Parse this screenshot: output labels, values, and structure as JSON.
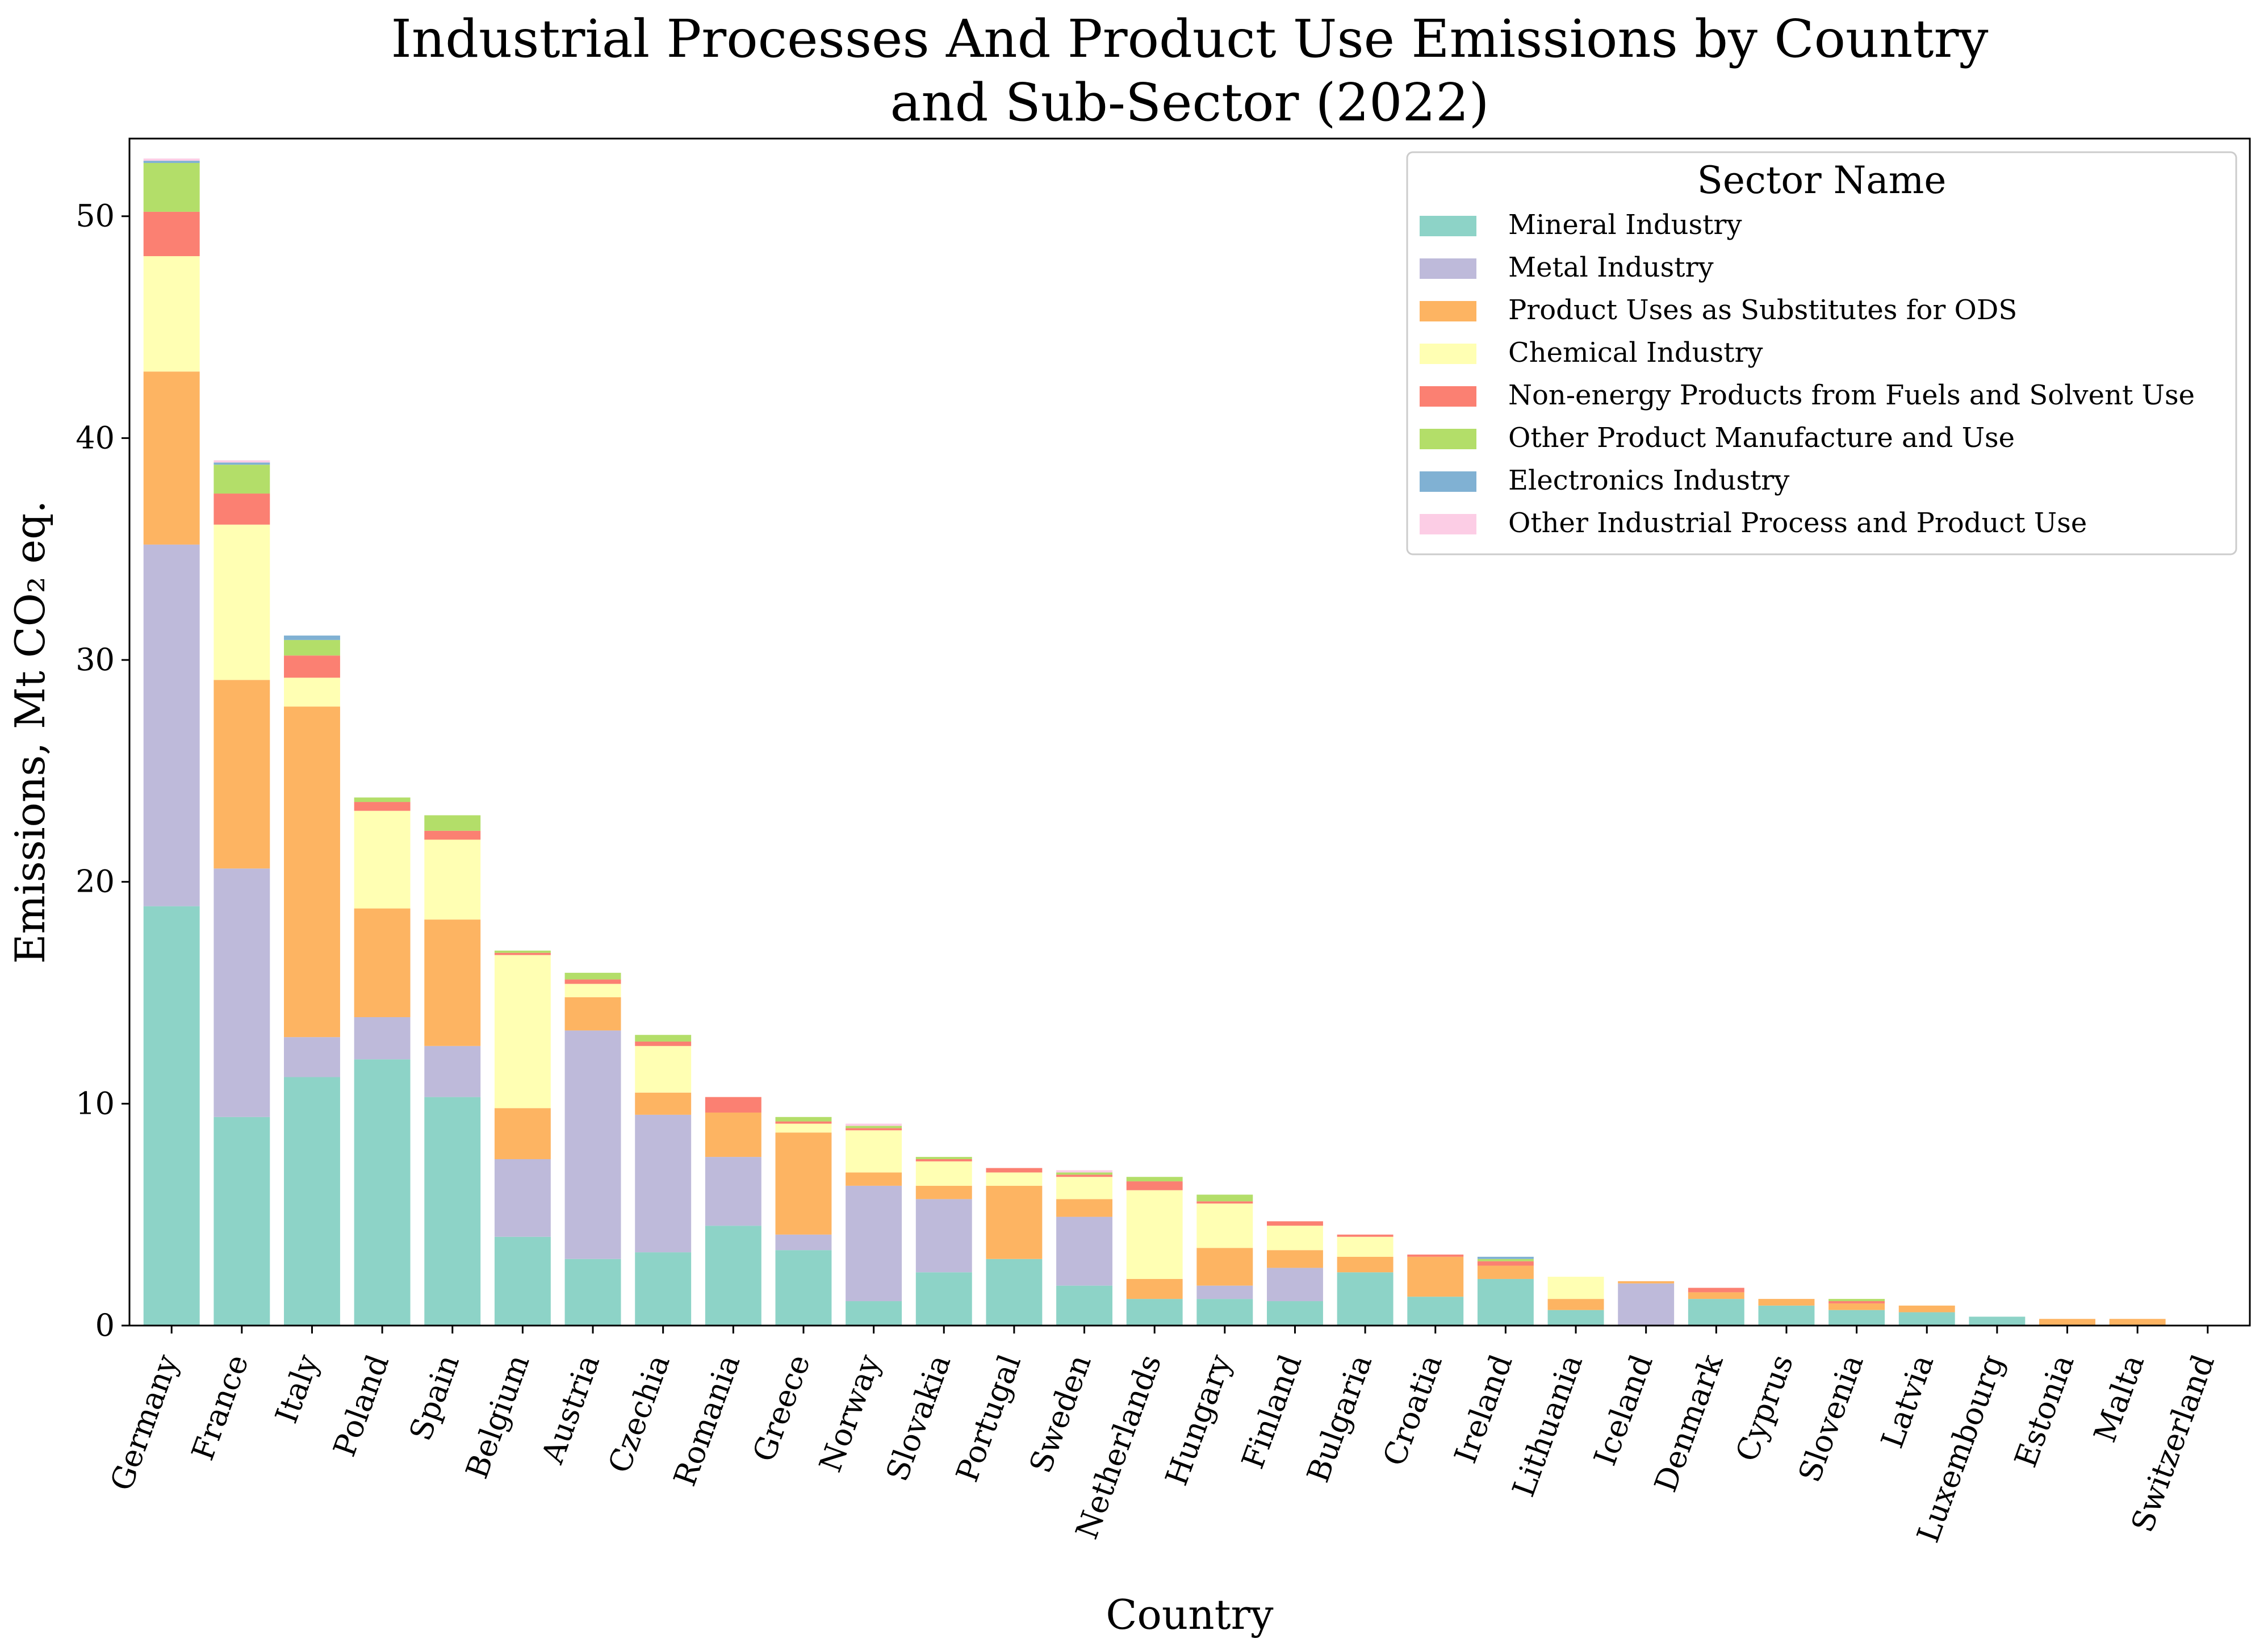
{
  "chart_data": {
    "type": "bar",
    "stacked": true,
    "title_lines": [
      "Industrial Processes And Product Use Emissions by Country",
      "and Sub-Sector (2022)"
    ],
    "xlabel": "Country",
    "ylabel": "Emissions, Mt CO₂ eq.",
    "ylim": [
      0,
      53.5
    ],
    "yticks": [
      0,
      10,
      20,
      30,
      40,
      50
    ],
    "grid": false,
    "legend": {
      "title": "Sector Name",
      "placement": "top-right"
    },
    "categories": [
      "Germany",
      "France",
      "Italy",
      "Poland",
      "Spain",
      "Belgium",
      "Austria",
      "Czechia",
      "Romania",
      "Greece",
      "Norway",
      "Slovakia",
      "Portugal",
      "Sweden",
      "Netherlands",
      "Hungary",
      "Finland",
      "Bulgaria",
      "Croatia",
      "Ireland",
      "Lithuania",
      "Iceland",
      "Denmark",
      "Cyprus",
      "Slovenia",
      "Latvia",
      "Luxembourg",
      "Estonia",
      "Malta",
      "Switzerland"
    ],
    "series": [
      {
        "name": "Mineral Industry",
        "color": "#8dd3c7",
        "values": [
          18.9,
          9.4,
          11.2,
          12.0,
          10.3,
          4.0,
          3.0,
          3.3,
          4.5,
          3.4,
          1.1,
          2.4,
          3.0,
          1.8,
          1.2,
          1.2,
          1.1,
          2.4,
          1.3,
          2.1,
          0.7,
          0.0,
          1.2,
          0.9,
          0.7,
          0.6,
          0.4,
          0.0,
          0.0,
          0.0
        ]
      },
      {
        "name": "Metal Industry",
        "color": "#bebada",
        "values": [
          16.3,
          11.2,
          1.8,
          1.9,
          2.3,
          3.5,
          10.3,
          6.2,
          3.1,
          0.7,
          5.2,
          3.3,
          0.0,
          3.1,
          0.0,
          0.6,
          1.5,
          0.0,
          0.0,
          0.0,
          0.0,
          1.9,
          0.0,
          0.0,
          0.0,
          0.0,
          0.0,
          0.0,
          0.0,
          0.0
        ]
      },
      {
        "name": "Product Uses as Substitutes for ODS",
        "color": "#fdb462",
        "values": [
          7.8,
          8.5,
          14.9,
          4.9,
          5.7,
          2.3,
          1.5,
          1.0,
          2.0,
          4.6,
          0.6,
          0.6,
          3.3,
          0.8,
          0.9,
          1.7,
          0.8,
          0.7,
          1.8,
          0.6,
          0.5,
          0.1,
          0.3,
          0.3,
          0.3,
          0.3,
          0.0,
          0.3,
          0.3,
          0.0
        ]
      },
      {
        "name": "Chemical Industry",
        "color": "#ffffb3",
        "values": [
          5.2,
          7.0,
          1.3,
          4.4,
          3.6,
          6.9,
          0.6,
          2.1,
          0.0,
          0.4,
          1.9,
          1.1,
          0.6,
          1.0,
          4.0,
          2.0,
          1.1,
          0.9,
          0.0,
          0.0,
          1.0,
          0.0,
          0.0,
          0.0,
          0.0,
          0.0,
          0.0,
          0.0,
          0.0,
          0.0
        ]
      },
      {
        "name": "Non-energy Products from Fuels and Solvent Use",
        "color": "#fb8072",
        "values": [
          2.0,
          1.4,
          1.0,
          0.4,
          0.4,
          0.1,
          0.2,
          0.2,
          0.7,
          0.1,
          0.1,
          0.1,
          0.2,
          0.1,
          0.4,
          0.1,
          0.2,
          0.1,
          0.1,
          0.2,
          0.0,
          0.0,
          0.2,
          0.0,
          0.1,
          0.0,
          0.0,
          0.0,
          0.0,
          0.0
        ]
      },
      {
        "name": "Other Product Manufacture and Use",
        "color": "#b3de69",
        "values": [
          2.2,
          1.3,
          0.7,
          0.2,
          0.7,
          0.1,
          0.3,
          0.3,
          0.0,
          0.2,
          0.1,
          0.1,
          0.0,
          0.1,
          0.2,
          0.3,
          0.0,
          0.0,
          0.0,
          0.1,
          0.0,
          0.0,
          0.0,
          0.0,
          0.1,
          0.0,
          0.0,
          0.0,
          0.0,
          0.0
        ]
      },
      {
        "name": "Electronics Industry",
        "color": "#80b1d3",
        "values": [
          0.1,
          0.1,
          0.2,
          0.0,
          0.0,
          0.0,
          0.0,
          0.0,
          0.0,
          0.0,
          0.0,
          0.0,
          0.0,
          0.0,
          0.0,
          0.0,
          0.0,
          0.0,
          0.0,
          0.1,
          0.0,
          0.0,
          0.0,
          0.0,
          0.0,
          0.0,
          0.0,
          0.0,
          0.0,
          0.0
        ]
      },
      {
        "name": "Other Industrial Process and Product Use",
        "color": "#fccde5",
        "values": [
          0.1,
          0.1,
          0.0,
          0.0,
          0.0,
          0.0,
          0.0,
          0.0,
          0.0,
          0.0,
          0.1,
          0.0,
          0.0,
          0.1,
          0.0,
          0.0,
          0.0,
          0.0,
          0.0,
          0.0,
          0.0,
          0.0,
          0.0,
          0.0,
          0.0,
          0.0,
          0.0,
          0.0,
          0.0,
          0.0
        ]
      }
    ]
  }
}
